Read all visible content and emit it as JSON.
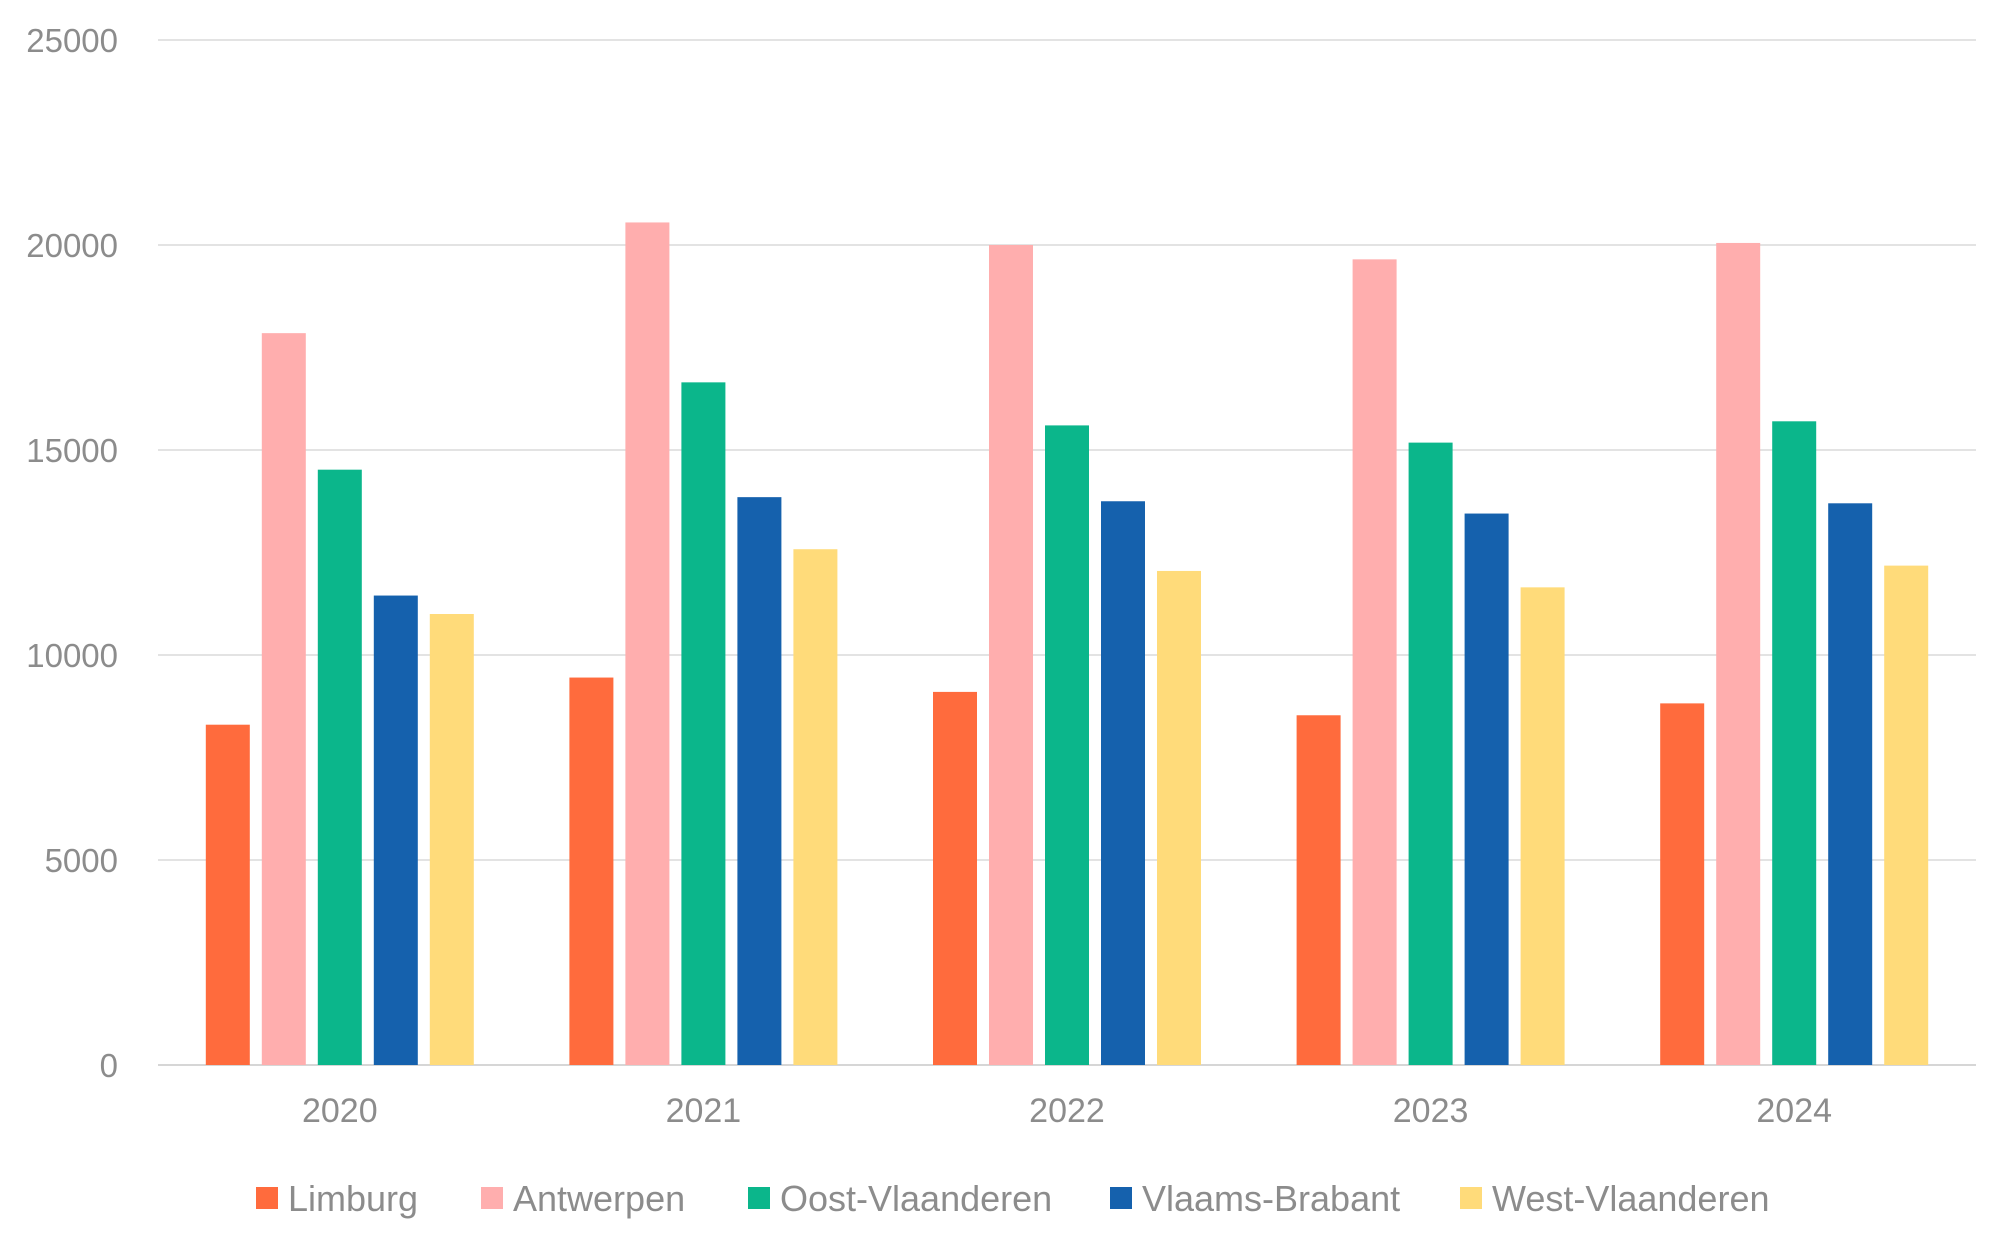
{
  "chart_data": {
    "type": "bar",
    "title": "",
    "xlabel": "",
    "ylabel": "",
    "categories": [
      "2020",
      "2021",
      "2022",
      "2023",
      "2024"
    ],
    "ylim": [
      0,
      25000
    ],
    "yticks": [
      0,
      5000,
      10000,
      15000,
      20000,
      25000
    ],
    "grid": true,
    "legend_position": "bottom",
    "series": [
      {
        "name": "Limburg",
        "color": "#ff6b3d",
        "values": [
          8300,
          9450,
          9100,
          8530,
          8820
        ]
      },
      {
        "name": "Antwerpen",
        "color": "#ffaeae",
        "values": [
          17850,
          20550,
          20000,
          19650,
          20050
        ]
      },
      {
        "name": "Oost-Vlaanderen",
        "color": "#0bb68b",
        "values": [
          14520,
          16650,
          15600,
          15180,
          15700
        ]
      },
      {
        "name": "Vlaams-Brabant",
        "color": "#1561ad",
        "values": [
          11450,
          13850,
          13750,
          13450,
          13700
        ]
      },
      {
        "name": "West-Vlaanderen",
        "color": "#ffdb7a",
        "values": [
          11000,
          12580,
          12050,
          11650,
          12180
        ]
      }
    ]
  }
}
